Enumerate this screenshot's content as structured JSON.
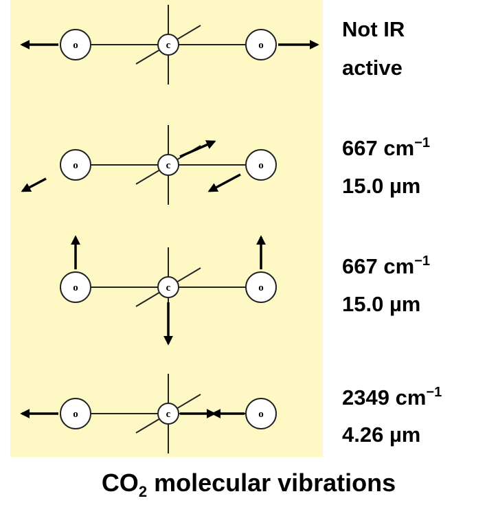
{
  "modes": [
    {
      "atoms": [
        "o",
        "c",
        "o"
      ],
      "label": [
        {
          "text": "Not IR"
        },
        {
          "text": "active"
        }
      ]
    },
    {
      "atoms": [
        "o",
        "c",
        "o"
      ],
      "label": [
        {
          "text": "667 cm",
          "sup": "−1"
        },
        {
          "text": "15.0 µm"
        }
      ]
    },
    {
      "atoms": [
        "o",
        "c",
        "o"
      ],
      "label": [
        {
          "text": "667 cm",
          "sup": "−1"
        },
        {
          "text": "15.0 µm"
        }
      ]
    },
    {
      "atoms": [
        "o",
        "c",
        "o"
      ],
      "label": [
        {
          "text": "2349 cm",
          "sup": "−1"
        },
        {
          "text": "4.26 µm"
        }
      ]
    }
  ],
  "title": {
    "main": "CO",
    "sub": "2",
    "rest": " molecular vibrations"
  }
}
